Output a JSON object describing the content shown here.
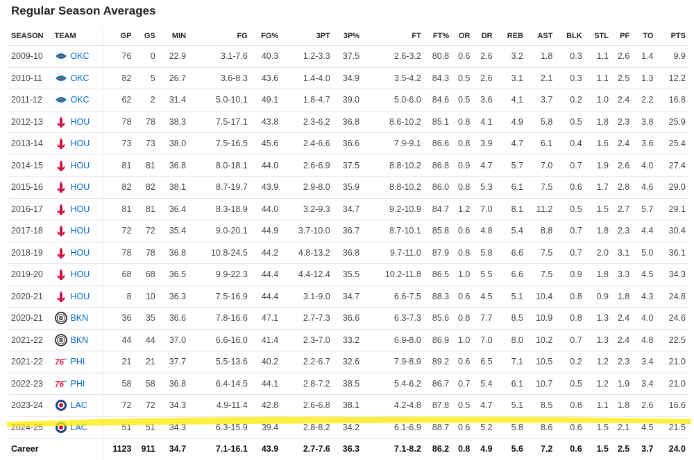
{
  "title": "Regular Season Averages",
  "colors": {
    "highlight": "#ffeb00",
    "link": "#0066cc"
  },
  "headers": [
    "SEASON",
    "TEAM",
    "GP",
    "GS",
    "MIN",
    "FG",
    "FG%",
    "3PT",
    "3P%",
    "FT",
    "FT%",
    "OR",
    "DR",
    "REB",
    "AST",
    "BLK",
    "STL",
    "PF",
    "TO",
    "PTS"
  ],
  "rows": [
    {
      "season": "2009-10",
      "logo": "okc",
      "team": "OKC",
      "gp": "76",
      "gs": "0",
      "min": "22.9",
      "fg": "3.1-7.6",
      "fgp": "40.3",
      "tpt": "1.2-3.3",
      "tpp": "37.5",
      "ft": "2.6-3.2",
      "ftp": "80.8",
      "or": "0.6",
      "dr": "2.6",
      "reb": "3.2",
      "ast": "1.8",
      "blk": "0.3",
      "stl": "1.1",
      "pf": "2.6",
      "to": "1.4",
      "pts": "9.9"
    },
    {
      "season": "2010-11",
      "logo": "okc",
      "team": "OKC",
      "gp": "82",
      "gs": "5",
      "min": "26.7",
      "fg": "3.6-8.3",
      "fgp": "43.6",
      "tpt": "1.4-4.0",
      "tpp": "34.9",
      "ft": "3.5-4.2",
      "ftp": "84.3",
      "or": "0.5",
      "dr": "2.6",
      "reb": "3.1",
      "ast": "2.1",
      "blk": "0.3",
      "stl": "1.1",
      "pf": "2.5",
      "to": "1.3",
      "pts": "12.2"
    },
    {
      "season": "2011-12",
      "logo": "okc",
      "team": "OKC",
      "gp": "62",
      "gs": "2",
      "min": "31.4",
      "fg": "5.0-10.1",
      "fgp": "49.1",
      "tpt": "1.8-4.7",
      "tpp": "39.0",
      "ft": "5.0-6.0",
      "ftp": "84.6",
      "or": "0.5",
      "dr": "3.6",
      "reb": "4.1",
      "ast": "3.7",
      "blk": "0.2",
      "stl": "1.0",
      "pf": "2.4",
      "to": "2.2",
      "pts": "16.8"
    },
    {
      "season": "2012-13",
      "logo": "hou",
      "team": "HOU",
      "gp": "78",
      "gs": "78",
      "min": "38.3",
      "fg": "7.5-17.1",
      "fgp": "43.8",
      "tpt": "2.3-6.2",
      "tpp": "36.8",
      "ft": "8.6-10.2",
      "ftp": "85.1",
      "or": "0.8",
      "dr": "4.1",
      "reb": "4.9",
      "ast": "5.8",
      "blk": "0.5",
      "stl": "1.8",
      "pf": "2.3",
      "to": "3.8",
      "pts": "25.9"
    },
    {
      "season": "2013-14",
      "logo": "hou",
      "team": "HOU",
      "gp": "73",
      "gs": "73",
      "min": "38.0",
      "fg": "7.5-16.5",
      "fgp": "45.6",
      "tpt": "2.4-6.6",
      "tpp": "36.6",
      "ft": "7.9-9.1",
      "ftp": "86.6",
      "or": "0.8",
      "dr": "3.9",
      "reb": "4.7",
      "ast": "6.1",
      "blk": "0.4",
      "stl": "1.6",
      "pf": "2.4",
      "to": "3.6",
      "pts": "25.4"
    },
    {
      "season": "2014-15",
      "logo": "hou",
      "team": "HOU",
      "gp": "81",
      "gs": "81",
      "min": "36.8",
      "fg": "8.0-18.1",
      "fgp": "44.0",
      "tpt": "2.6-6.9",
      "tpp": "37.5",
      "ft": "8.8-10.2",
      "ftp": "86.8",
      "or": "0.9",
      "dr": "4.7",
      "reb": "5.7",
      "ast": "7.0",
      "blk": "0.7",
      "stl": "1.9",
      "pf": "2.6",
      "to": "4.0",
      "pts": "27.4"
    },
    {
      "season": "2015-16",
      "logo": "hou",
      "team": "HOU",
      "gp": "82",
      "gs": "82",
      "min": "38.1",
      "fg": "8.7-19.7",
      "fgp": "43.9",
      "tpt": "2.9-8.0",
      "tpp": "35.9",
      "ft": "8.8-10.2",
      "ftp": "86.0",
      "or": "0.8",
      "dr": "5.3",
      "reb": "6.1",
      "ast": "7.5",
      "blk": "0.6",
      "stl": "1.7",
      "pf": "2.8",
      "to": "4.6",
      "pts": "29.0"
    },
    {
      "season": "2016-17",
      "logo": "hou",
      "team": "HOU",
      "gp": "81",
      "gs": "81",
      "min": "36.4",
      "fg": "8.3-18.9",
      "fgp": "44.0",
      "tpt": "3.2-9.3",
      "tpp": "34.7",
      "ft": "9.2-10.9",
      "ftp": "84.7",
      "or": "1.2",
      "dr": "7.0",
      "reb": "8.1",
      "ast": "11.2",
      "blk": "0.5",
      "stl": "1.5",
      "pf": "2.7",
      "to": "5.7",
      "pts": "29.1"
    },
    {
      "season": "2017-18",
      "logo": "hou",
      "team": "HOU",
      "gp": "72",
      "gs": "72",
      "min": "35.4",
      "fg": "9.0-20.1",
      "fgp": "44.9",
      "tpt": "3.7-10.0",
      "tpp": "36.7",
      "ft": "8.7-10.1",
      "ftp": "85.8",
      "or": "0.6",
      "dr": "4.8",
      "reb": "5.4",
      "ast": "8.8",
      "blk": "0.7",
      "stl": "1.8",
      "pf": "2.3",
      "to": "4.4",
      "pts": "30.4"
    },
    {
      "season": "2018-19",
      "logo": "hou",
      "team": "HOU",
      "gp": "78",
      "gs": "78",
      "min": "36.8",
      "fg": "10.8-24.5",
      "fgp": "44.2",
      "tpt": "4.8-13.2",
      "tpp": "36.8",
      "ft": "9.7-11.0",
      "ftp": "87.9",
      "or": "0.8",
      "dr": "5.8",
      "reb": "6.6",
      "ast": "7.5",
      "blk": "0.7",
      "stl": "2.0",
      "pf": "3.1",
      "to": "5.0",
      "pts": "36.1"
    },
    {
      "season": "2019-20",
      "logo": "hou",
      "team": "HOU",
      "gp": "68",
      "gs": "68",
      "min": "36.5",
      "fg": "9.9-22.3",
      "fgp": "44.4",
      "tpt": "4.4-12.4",
      "tpp": "35.5",
      "ft": "10.2-11.8",
      "ftp": "86.5",
      "or": "1.0",
      "dr": "5.5",
      "reb": "6.6",
      "ast": "7.5",
      "blk": "0.9",
      "stl": "1.8",
      "pf": "3.3",
      "to": "4.5",
      "pts": "34.3"
    },
    {
      "season": "2020-21",
      "logo": "hou",
      "team": "HOU",
      "gp": "8",
      "gs": "10",
      "min": "36.3",
      "fg": "7.5-16.9",
      "fgp": "44.4",
      "tpt": "3.1-9.0",
      "tpp": "34.7",
      "ft": "6.6-7.5",
      "ftp": "88.3",
      "or": "0.6",
      "dr": "4.5",
      "reb": "5.1",
      "ast": "10.4",
      "blk": "0.8",
      "stl": "0.9",
      "pf": "1.8",
      "to": "4.3",
      "pts": "24.8"
    },
    {
      "season": "2020-21",
      "logo": "bkn",
      "team": "BKN",
      "gp": "36",
      "gs": "35",
      "min": "36.6",
      "fg": "7.8-16.6",
      "fgp": "47.1",
      "tpt": "2.7-7.3",
      "tpp": "36.6",
      "ft": "6.3-7.3",
      "ftp": "85.6",
      "or": "0.8",
      "dr": "7.7",
      "reb": "8.5",
      "ast": "10.9",
      "blk": "0.8",
      "stl": "1.3",
      "pf": "2.4",
      "to": "4.0",
      "pts": "24.6"
    },
    {
      "season": "2021-22",
      "logo": "bkn",
      "team": "BKN",
      "gp": "44",
      "gs": "44",
      "min": "37.0",
      "fg": "6.6-16.0",
      "fgp": "41.4",
      "tpt": "2.3-7.0",
      "tpp": "33.2",
      "ft": "6.9-8.0",
      "ftp": "86.9",
      "or": "1.0",
      "dr": "7.0",
      "reb": "8.0",
      "ast": "10.2",
      "blk": "0.7",
      "stl": "1.3",
      "pf": "2.4",
      "to": "4.8",
      "pts": "22.5"
    },
    {
      "season": "2021-22",
      "logo": "phi",
      "team": "PHI",
      "gp": "21",
      "gs": "21",
      "min": "37.7",
      "fg": "5.5-13.6",
      "fgp": "40.2",
      "tpt": "2.2-6.7",
      "tpp": "32.6",
      "ft": "7.9-8.9",
      "ftp": "89.2",
      "or": "0.6",
      "dr": "6.5",
      "reb": "7.1",
      "ast": "10.5",
      "blk": "0.2",
      "stl": "1.2",
      "pf": "2.3",
      "to": "3.4",
      "pts": "21.0"
    },
    {
      "season": "2022-23",
      "logo": "phi",
      "team": "PHI",
      "gp": "58",
      "gs": "58",
      "min": "36.8",
      "fg": "6.4-14.5",
      "fgp": "44.1",
      "tpt": "2.8-7.2",
      "tpp": "38.5",
      "ft": "5.4-6.2",
      "ftp": "86.7",
      "or": "0.7",
      "dr": "5.4",
      "reb": "6.1",
      "ast": "10.7",
      "blk": "0.5",
      "stl": "1.2",
      "pf": "1.9",
      "to": "3.4",
      "pts": "21.0"
    },
    {
      "season": "2023-24",
      "logo": "lac",
      "team": "LAC",
      "gp": "72",
      "gs": "72",
      "min": "34.3",
      "fg": "4.9-11.4",
      "fgp": "42.8",
      "tpt": "2.6-6.8",
      "tpp": "38.1",
      "ft": "4.2-4.8",
      "ftp": "87.8",
      "or": "0.5",
      "dr": "4.7",
      "reb": "5.1",
      "ast": "8.5",
      "blk": "0.8",
      "stl": "1.1",
      "pf": "1.8",
      "to": "2.6",
      "pts": "16.6"
    },
    {
      "season": "2024-25",
      "logo": "lac",
      "team": "LAC",
      "gp": "51",
      "gs": "51",
      "min": "34.3",
      "fg": "6.3-15.9",
      "fgp": "39.4",
      "tpt": "2.8-8.2",
      "tpp": "34.2",
      "ft": "6.1-6.9",
      "ftp": "88.7",
      "or": "0.6",
      "dr": "5.2",
      "reb": "5.8",
      "ast": "8.6",
      "blk": "0.6",
      "stl": "1.5",
      "pf": "2.1",
      "to": "4.5",
      "pts": "21.5"
    }
  ],
  "career": {
    "label": "Career",
    "gp": "1123",
    "gs": "911",
    "min": "34.7",
    "fg": "7.1-16.1",
    "fgp": "43.9",
    "tpt": "2.7-7.6",
    "tpp": "36.3",
    "ft": "7.1-8.2",
    "ftp": "86.2",
    "or": "0.8",
    "dr": "4.9",
    "reb": "5.6",
    "ast": "7.2",
    "blk": "0.6",
    "stl": "1.5",
    "pf": "2.5",
    "to": "3.7",
    "pts": "24.0"
  }
}
